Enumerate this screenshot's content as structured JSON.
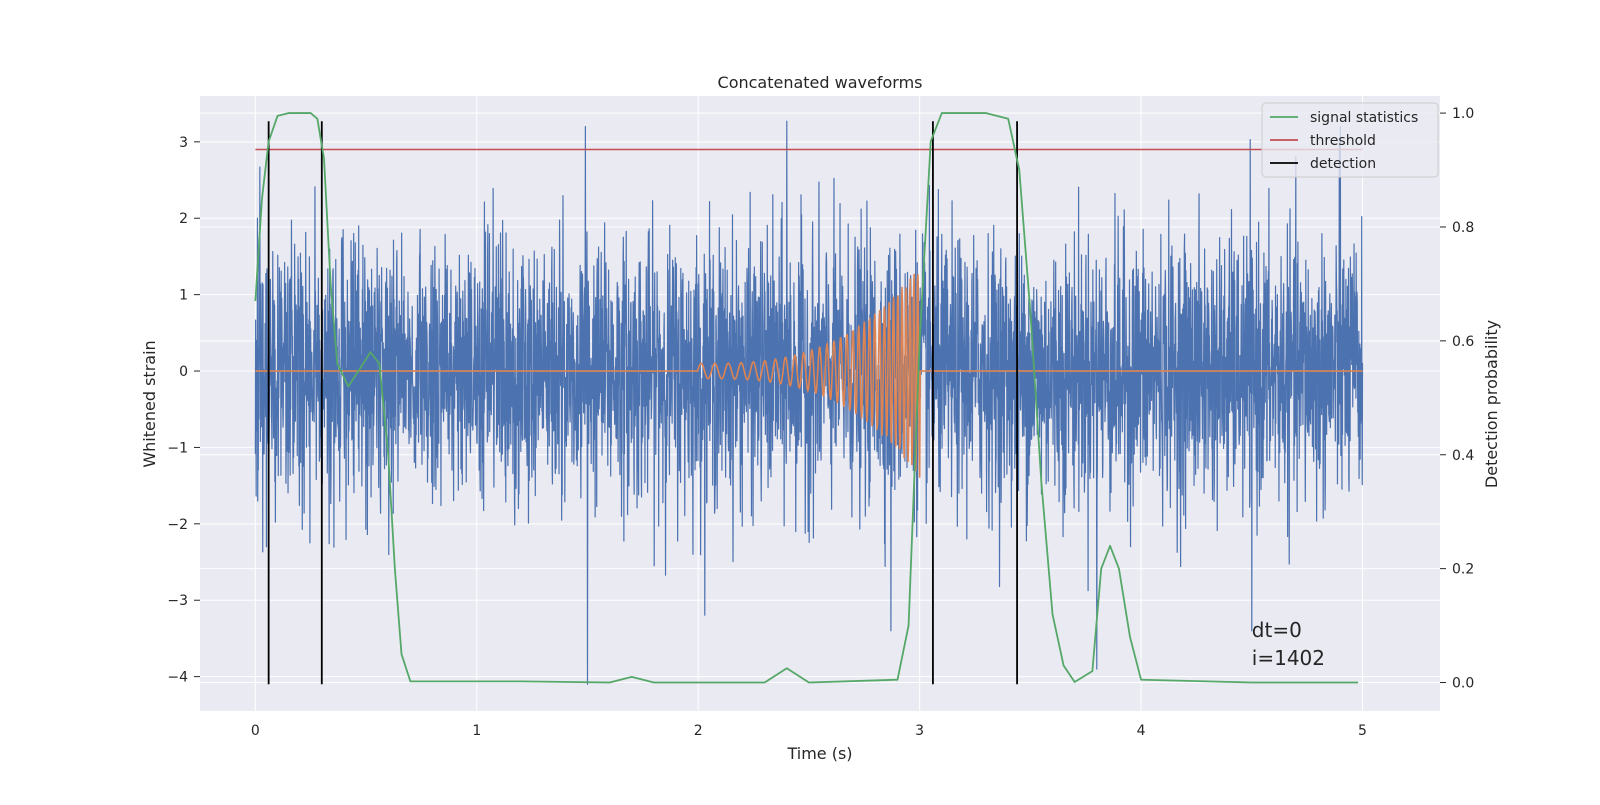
{
  "chart_data": {
    "type": "line",
    "title": "Concatenated waveforms",
    "xlabel": "Time (s)",
    "ylabel": "Whitened strain",
    "y2label": "Detection probability",
    "xlim": [
      -0.25,
      5.35
    ],
    "ylim": [
      -4.45,
      3.6
    ],
    "y2lim": [
      -0.05,
      1.03
    ],
    "x_ticks": [
      0,
      1,
      2,
      3,
      4,
      5
    ],
    "y_ticks": [
      -4,
      -3,
      -2,
      -1,
      0,
      1,
      2,
      3
    ],
    "y2_ticks": [
      0.0,
      0.2,
      0.4,
      0.6,
      0.8,
      1.0
    ],
    "x_tick_labels": [
      "0",
      "1",
      "2",
      "3",
      "4",
      "5"
    ],
    "y_tick_labels": [
      "−4",
      "−3",
      "−2",
      "−1",
      "0",
      "1",
      "2",
      "3"
    ],
    "y2_tick_labels": [
      "0.0",
      "0.2",
      "0.4",
      "0.6",
      "0.8",
      "1.0"
    ],
    "grid": true,
    "legend_position": "top-right",
    "legend": [
      {
        "label": "signal statistics",
        "color": "#55a868"
      },
      {
        "label": "threshold",
        "color": "#c44e52"
      },
      {
        "label": "detection",
        "color": "#000000"
      }
    ],
    "colors": {
      "noise": "#4c72b0",
      "waveform": "#dd8452",
      "signal_statistics": "#55a868",
      "threshold": "#c44e52",
      "detection": "#000000",
      "axes_background": "#eaeaf2",
      "grid": "#ffffff"
    },
    "series": [
      {
        "role": "noise",
        "axis": "left",
        "description_values": {
          "x_start": 0,
          "x_end": 5,
          "approx_std": 0.85,
          "max": 3.27,
          "min": -4.1
        },
        "extremes": [
          [
            0.02,
            2.67
          ],
          [
            0.05,
            -2.3
          ],
          [
            1.5,
            -4.1
          ],
          [
            1.49,
            3.2
          ],
          [
            2.4,
            3.27
          ],
          [
            3.8,
            -3.9
          ],
          [
            4.5,
            -3.4
          ],
          [
            4.9,
            3.2
          ],
          [
            2.87,
            -3.4
          ]
        ]
      },
      {
        "role": "waveform",
        "axis": "left",
        "description_values": {
          "x_start": 2.0,
          "x_end": 3.0,
          "amplitude_start": 0.1,
          "amplitude_end": 1.4,
          "freq_start_hz": 16,
          "freq_end_hz": 60
        },
        "values_x": [
          0,
          2.0,
          2.5,
          2.8,
          2.95,
          3.0,
          5.0
        ],
        "values_y": [
          0,
          0,
          0.25,
          0.6,
          1.2,
          0,
          0
        ]
      },
      {
        "name": "signal statistics",
        "axis": "right",
        "x": [
          0.0,
          0.03,
          0.06,
          0.1,
          0.15,
          0.25,
          0.28,
          0.31,
          0.34,
          0.37,
          0.42,
          0.47,
          0.52,
          0.56,
          0.6,
          0.63,
          0.66,
          0.7,
          1.2,
          1.6,
          1.7,
          1.8,
          2.3,
          2.4,
          2.5,
          2.9,
          2.95,
          3.0,
          3.05,
          3.1,
          3.3,
          3.4,
          3.45,
          3.5,
          3.55,
          3.6,
          3.65,
          3.7,
          3.78,
          3.82,
          3.86,
          3.9,
          3.95,
          4.0,
          4.5,
          4.98
        ],
        "y": [
          0.67,
          0.85,
          0.95,
          0.995,
          1.0,
          1.0,
          0.99,
          0.92,
          0.7,
          0.56,
          0.52,
          0.55,
          0.58,
          0.56,
          0.4,
          0.2,
          0.05,
          0.002,
          0.002,
          0.0,
          0.01,
          0.0,
          0.0,
          0.025,
          0.0,
          0.005,
          0.1,
          0.6,
          0.95,
          1.0,
          1.0,
          0.99,
          0.9,
          0.65,
          0.35,
          0.12,
          0.03,
          0.001,
          0.02,
          0.2,
          0.24,
          0.2,
          0.08,
          0.005,
          0.0,
          0.0
        ]
      },
      {
        "name": "threshold",
        "axis": "left",
        "x": [
          0,
          5
        ],
        "y": [
          2.9,
          2.9
        ]
      },
      {
        "name": "detection",
        "axis": "left",
        "x": [
          0.06,
          0.3,
          3.06,
          3.44
        ],
        "y_range": [
          -4.1,
          3.27
        ]
      }
    ],
    "annotation": {
      "lines": [
        "dt=0",
        "i=1402"
      ],
      "x": 4.5,
      "y": -3.4
    }
  }
}
